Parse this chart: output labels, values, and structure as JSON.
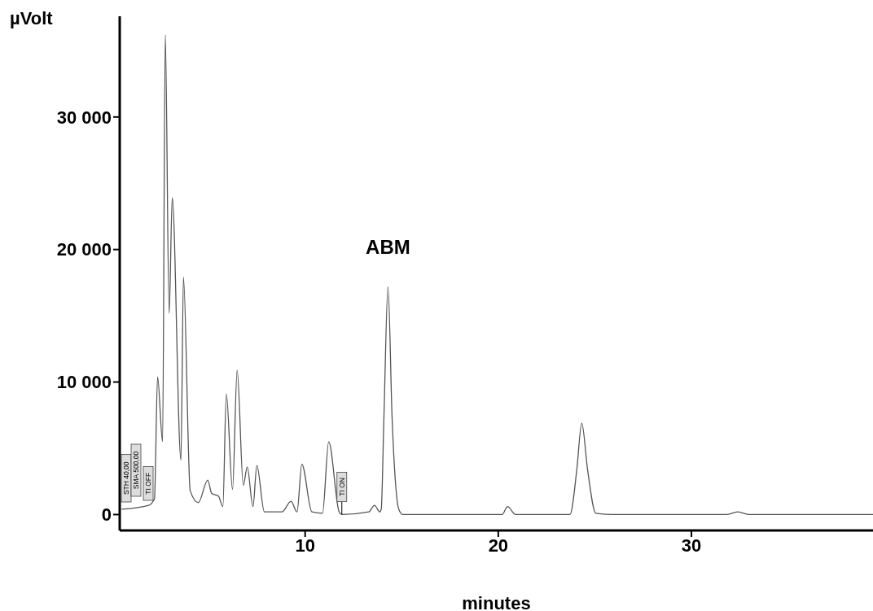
{
  "chart_data": {
    "type": "line",
    "xlabel": "minutes",
    "ylabel": "µVolt",
    "series": [
      {
        "color": "#555555",
        "x": [
          0.5,
          1.9,
          2.2,
          2.36,
          2.62,
          2.76,
          2.96,
          3.12,
          3.57,
          3.7,
          4.05,
          4.47,
          4.96,
          5.16,
          5.51,
          5.74,
          5.92,
          6.24,
          6.48,
          6.8,
          7.0,
          7.3,
          7.5,
          7.89,
          8.8,
          9.27,
          9.58,
          9.83,
          10.35,
          10.9,
          11.22,
          11.76,
          11.9,
          13.3,
          13.59,
          13.87,
          13.94,
          14.08,
          14.29,
          14.5,
          14.85,
          15.06,
          19.5,
          20.2,
          20.48,
          20.9,
          23.71,
          24.06,
          24.32,
          24.63,
          25.05,
          26,
          31.8,
          32.4,
          33,
          39.4
        ],
        "values": [
          400,
          700,
          1200,
          10400,
          5500,
          36200,
          15200,
          23900,
          4100,
          17900,
          1800,
          900,
          2600,
          1600,
          1400,
          600,
          9100,
          1900,
          10900,
          2200,
          3600,
          600,
          3700,
          200,
          200,
          1000,
          200,
          3800,
          200,
          100,
          5500,
          200,
          0,
          200,
          700,
          200,
          400,
          7400,
          17200,
          7400,
          400,
          0,
          0,
          0,
          600,
          0,
          0,
          3300,
          6900,
          3300,
          100,
          0,
          0,
          200,
          0,
          0
        ]
      }
    ],
    "xlim": [
      0.4,
      39.4
    ],
    "ylim": [
      -1200,
      37600
    ],
    "xticks": [
      10,
      20,
      30
    ],
    "yticks": [
      0,
      {
        "value": 10000,
        "label": "10 000"
      },
      {
        "value": 20000,
        "label": "20 000"
      },
      {
        "value": 30000,
        "label": "30 000"
      }
    ],
    "marker": "none",
    "line_style": "solid",
    "grid": false,
    "legend": false,
    "annotations": [
      {
        "text": "ABM",
        "x": 14.29,
        "y": 17200
      },
      "STH 40,00",
      "SMA 500,00",
      "TI OFF",
      {
        "text": "TI ON",
        "x": 11.9,
        "y": 0
      }
    ]
  }
}
